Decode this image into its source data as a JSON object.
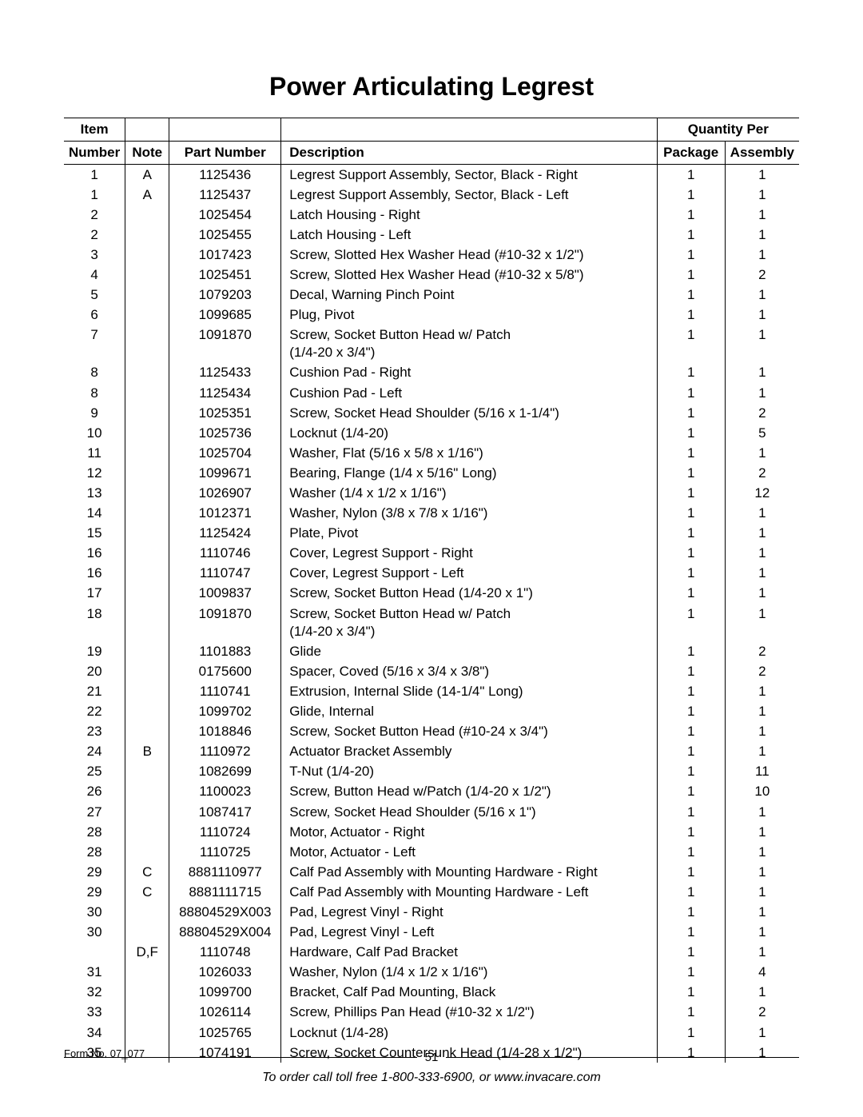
{
  "title": "Power Articulating Legrest",
  "headers": {
    "item_top": "Item",
    "item": "Number",
    "note": "Note",
    "part": "Part Number",
    "desc": "Description",
    "qty": "Quantity Per",
    "pkg": "Package",
    "asm": "Assembly"
  },
  "rows": [
    {
      "item": "1",
      "note": "A",
      "part": "1125436",
      "desc": "Legrest Support Assembly,  Sector, Black - Right",
      "pkg": "1",
      "asm": "1"
    },
    {
      "item": "1",
      "note": "A",
      "part": "1125437",
      "desc": "Legrest Support Assembly,  Sector, Black - Left",
      "pkg": "1",
      "asm": "1"
    },
    {
      "item": "2",
      "note": "",
      "part": "1025454",
      "desc": "Latch Housing - Right",
      "pkg": "1",
      "asm": "1"
    },
    {
      "item": "2",
      "note": "",
      "part": "1025455",
      "desc": "Latch Housing - Left",
      "pkg": "1",
      "asm": "1"
    },
    {
      "item": "3",
      "note": "",
      "part": "1017423",
      "desc": "Screw, Slotted Hex Washer Head (#10-32 x 1/2\")",
      "pkg": "1",
      "asm": "1"
    },
    {
      "item": "4",
      "note": "",
      "part": "1025451",
      "desc": "Screw, Slotted Hex Washer Head (#10-32 x 5/8\")",
      "pkg": "1",
      "asm": "2"
    },
    {
      "item": "5",
      "note": "",
      "part": "1079203",
      "desc": "Decal, Warning Pinch Point",
      "pkg": "1",
      "asm": "1"
    },
    {
      "item": "6",
      "note": "",
      "part": "1099685",
      "desc": "Plug, Pivot",
      "pkg": "1",
      "asm": "1"
    },
    {
      "item": "7",
      "note": "",
      "part": "1091870",
      "desc": "Screw, Socket Button Head w/ Patch\n(1/4-20 x 3/4\")",
      "pkg": "1",
      "asm": "1"
    },
    {
      "item": "8",
      "note": "",
      "part": "1125433",
      "desc": "Cushion Pad - Right",
      "pkg": "1",
      "asm": "1"
    },
    {
      "item": "8",
      "note": "",
      "part": "1125434",
      "desc": "Cushion Pad - Left",
      "pkg": "1",
      "asm": "1"
    },
    {
      "item": "9",
      "note": "",
      "part": "1025351",
      "desc": "Screw, Socket Head Shoulder (5/16 x 1-1/4\")",
      "pkg": "1",
      "asm": "2"
    },
    {
      "item": "10",
      "note": "",
      "part": "1025736",
      "desc": "Locknut (1/4-20)",
      "pkg": "1",
      "asm": "5"
    },
    {
      "item": "11",
      "note": "",
      "part": "1025704",
      "desc": "Washer, Flat (5/16 x 5/8 x 1/16\")",
      "pkg": "1",
      "asm": "1"
    },
    {
      "item": "12",
      "note": "",
      "part": "1099671",
      "desc": "Bearing, Flange (1/4 x 5/16\" Long)",
      "pkg": "1",
      "asm": "2"
    },
    {
      "item": "13",
      "note": "",
      "part": "1026907",
      "desc": "Washer (1/4 x 1/2 x 1/16\")",
      "pkg": "1",
      "asm": "12"
    },
    {
      "item": "14",
      "note": "",
      "part": "1012371",
      "desc": "Washer, Nylon (3/8 x 7/8 x 1/16\")",
      "pkg": "1",
      "asm": "1"
    },
    {
      "item": "15",
      "note": "",
      "part": "1125424",
      "desc": "Plate, Pivot",
      "pkg": "1",
      "asm": "1"
    },
    {
      "item": "16",
      "note": "",
      "part": "1110746",
      "desc": "Cover, Legrest Support - Right",
      "pkg": "1",
      "asm": "1"
    },
    {
      "item": "16",
      "note": "",
      "part": "1110747",
      "desc": "Cover, Legrest Support - Left",
      "pkg": "1",
      "asm": "1"
    },
    {
      "item": "17",
      "note": "",
      "part": "1009837",
      "desc": "Screw, Socket Button Head (1/4-20 x 1\")",
      "pkg": "1",
      "asm": "1"
    },
    {
      "item": "18",
      "note": "",
      "part": "1091870",
      "desc": "Screw, Socket Button Head w/ Patch\n(1/4-20 x 3/4\")",
      "pkg": "1",
      "asm": "1"
    },
    {
      "item": "19",
      "note": "",
      "part": "1101883",
      "desc": "Glide",
      "pkg": "1",
      "asm": "2"
    },
    {
      "item": "20",
      "note": "",
      "part": "0175600",
      "desc": "Spacer, Coved (5/16 x 3/4 x 3/8\")",
      "pkg": "1",
      "asm": "2"
    },
    {
      "item": "21",
      "note": "",
      "part": "1110741",
      "desc": "Extrusion, Internal Slide (14-1/4\" Long)",
      "pkg": "1",
      "asm": "1"
    },
    {
      "item": "22",
      "note": "",
      "part": "1099702",
      "desc": "Glide, Internal",
      "pkg": "1",
      "asm": "1"
    },
    {
      "item": "23",
      "note": "",
      "part": "1018846",
      "desc": "Screw, Socket Button Head (#10-24 x 3/4\")",
      "pkg": "1",
      "asm": "1"
    },
    {
      "item": "24",
      "note": "B",
      "part": "1110972",
      "desc": "Actuator Bracket Assembly",
      "pkg": "1",
      "asm": "1"
    },
    {
      "item": "25",
      "note": "",
      "part": "1082699",
      "desc": "T-Nut (1/4-20)",
      "pkg": "1",
      "asm": "11"
    },
    {
      "item": "26",
      "note": "",
      "part": "1100023",
      "desc": "Screw, Button Head w/Patch (1/4-20 x 1/2\")",
      "pkg": "1",
      "asm": "10"
    },
    {
      "item": "27",
      "note": "",
      "part": "1087417",
      "desc": "Screw, Socket Head Shoulder (5/16 x 1\")",
      "pkg": "1",
      "asm": "1"
    },
    {
      "item": "28",
      "note": "",
      "part": "1110724",
      "desc": "Motor, Actuator - Right",
      "pkg": "1",
      "asm": "1"
    },
    {
      "item": "28",
      "note": "",
      "part": "1110725",
      "desc": "Motor, Actuator - Left",
      "pkg": "1",
      "asm": "1"
    },
    {
      "item": "29",
      "note": "C",
      "part": "8881110977",
      "desc": "Calf Pad Assembly with Mounting Hardware - Right",
      "pkg": "1",
      "asm": "1"
    },
    {
      "item": "29",
      "note": "C",
      "part": "8881111715",
      "desc": "Calf Pad Assembly with Mounting Hardware - Left",
      "pkg": "1",
      "asm": "1"
    },
    {
      "item": "30",
      "note": "",
      "part": "88804529X003",
      "desc": "Pad, Legrest Vinyl - Right",
      "pkg": "1",
      "asm": "1"
    },
    {
      "item": "30",
      "note": "",
      "part": "88804529X004",
      "desc": "Pad, Legrest Vinyl - Left",
      "pkg": "1",
      "asm": "1"
    },
    {
      "item": "",
      "note": "D,F",
      "part": "1110748",
      "desc": "Hardware, Calf Pad Bracket",
      "pkg": "1",
      "asm": "1"
    },
    {
      "item": "31",
      "note": "",
      "part": "1026033",
      "desc": "Washer, Nylon (1/4 x 1/2 x 1/16\")",
      "pkg": "1",
      "asm": "4"
    },
    {
      "item": "32",
      "note": "",
      "part": "1099700",
      "desc": "Bracket, Calf Pad Mounting, Black",
      "pkg": "1",
      "asm": "1"
    },
    {
      "item": "33",
      "note": "",
      "part": "1026114",
      "desc": "Screw, Phillips Pan Head (#10-32 x 1/2\")",
      "pkg": "1",
      "asm": "2"
    },
    {
      "item": "34",
      "note": "",
      "part": "1025765",
      "desc": "Locknut (1/4-28)",
      "pkg": "1",
      "asm": "1"
    },
    {
      "item": "35",
      "note": "",
      "part": "1074191",
      "desc": "Screw, Socket Countersunk Head (1/4-28 x 1/2\")",
      "pkg": "1",
      "asm": "1"
    }
  ],
  "footer": {
    "page": "51",
    "form": "Form No. 07_077",
    "order": "To order call toll free 1-800-333-6900, or www.invacare.com"
  }
}
